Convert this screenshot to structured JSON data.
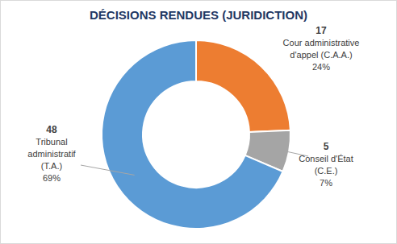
{
  "chart_data": {
    "type": "donut",
    "title": "DÉCISIONS RENDUES (JURIDICTION)",
    "categories": [
      "Cour administrative\nd'appel (C.A.A.)",
      "Conseil d'État\n(C.E.)",
      "Tribunal\nadministratif\n(T.A.)"
    ],
    "values": [
      17,
      5,
      48
    ],
    "percentages": [
      {
        "value": 24,
        "label": "24%"
      },
      {
        "value": 7,
        "label": "7%"
      },
      {
        "value": 69,
        "label": "69%"
      }
    ],
    "colors": [
      "#ed7d31",
      "#a5a5a5",
      "#5b9bd5"
    ],
    "data_labels": true
  }
}
